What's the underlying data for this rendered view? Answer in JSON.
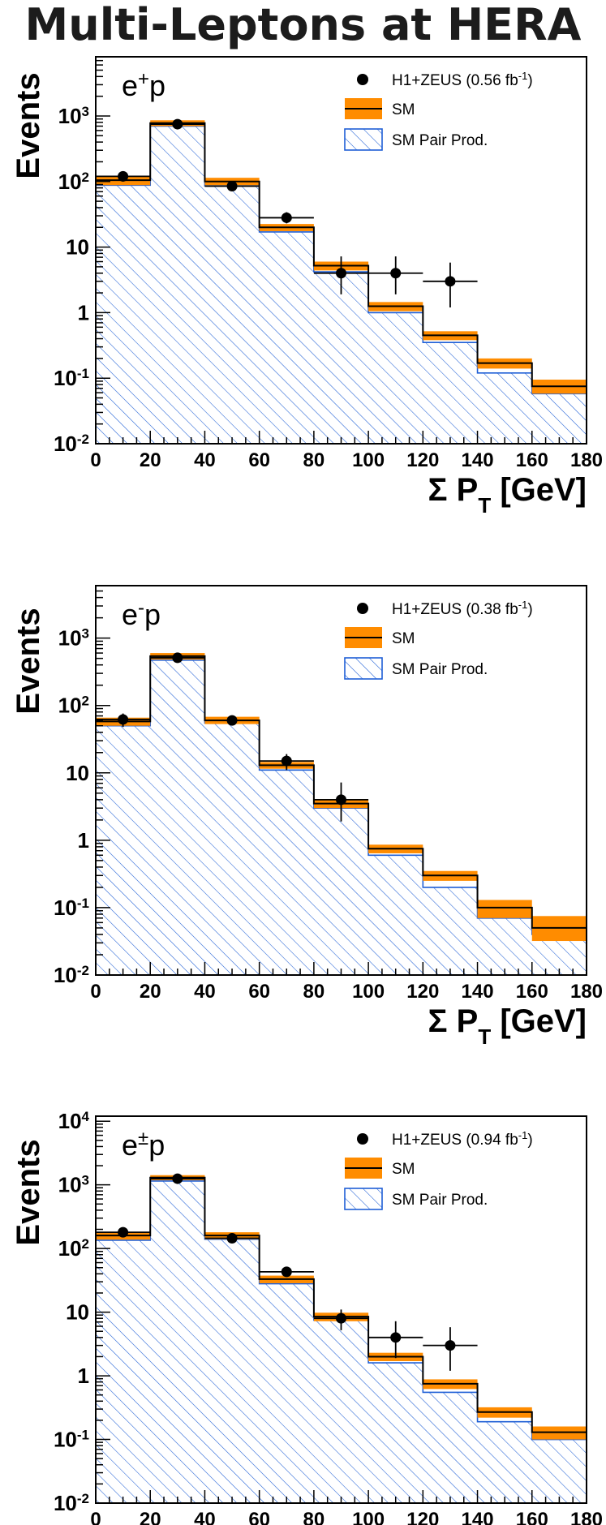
{
  "title": "Multi-Leptons at HERA",
  "colors": {
    "sm_band": "#ff8c00",
    "sm_line": "#000000",
    "pair_hatch": "#1f5fd6",
    "data": "#000000"
  },
  "legend_labels": {
    "sm": "SM",
    "pair": "SM Pair Prod."
  },
  "chart_data": [
    {
      "type": "bar",
      "panel_label": "e+p",
      "data_label": "H1+ZEUS (0.56 fb-1)",
      "xlabel": "Σ PT [GeV]",
      "ylabel": "Events",
      "xlim": [
        0,
        180
      ],
      "ylim": [
        0.01,
        8000
      ],
      "log_y": true,
      "x_ticks": [
        0,
        20,
        40,
        60,
        80,
        100,
        120,
        140,
        160,
        180
      ],
      "y_ticks": [
        "10-2",
        "10-1",
        "1",
        "10",
        "102",
        "103"
      ],
      "bin_edges": [
        0,
        20,
        40,
        60,
        80,
        100,
        120,
        140,
        160,
        180
      ],
      "sm": [
        105,
        780,
        100,
        20,
        5.2,
        1.25,
        0.45,
        0.17,
        0.075
      ],
      "sm_err_low": [
        88,
        700,
        88,
        17.5,
        4.4,
        1.05,
        0.38,
        0.14,
        0.058
      ],
      "sm_err_high": [
        122,
        860,
        114,
        22.5,
        6.0,
        1.45,
        0.52,
        0.2,
        0.095
      ],
      "pair": [
        88,
        700,
        86,
        17,
        4.2,
        1.0,
        0.35,
        0.12,
        0.058
      ],
      "data": [
        {
          "x": 10,
          "y": 120,
          "ylo": 100,
          "yhi": 142
        },
        {
          "x": 30,
          "y": 750,
          "ylo": 700,
          "yhi": 800
        },
        {
          "x": 50,
          "y": 85,
          "ylo": 76,
          "yhi": 95
        },
        {
          "x": 70,
          "y": 28,
          "ylo": 23,
          "yhi": 34
        },
        {
          "x": 90,
          "y": 4,
          "ylo": 1.9,
          "yhi": 7.2
        },
        {
          "x": 110,
          "y": 4,
          "ylo": 1.9,
          "yhi": 7.2
        },
        {
          "x": 130,
          "y": 3,
          "ylo": 1.2,
          "yhi": 5.8
        }
      ],
      "legend_entries": [
        "H1+ZEUS (0.56 fb-1)",
        "SM",
        "SM Pair Prod."
      ]
    },
    {
      "type": "bar",
      "panel_label": "e-p",
      "data_label": "H1+ZEUS (0.38 fb-1)",
      "xlabel": "Σ PT [GeV]",
      "ylabel": "Events",
      "xlim": [
        0,
        180
      ],
      "ylim": [
        0.01,
        6000
      ],
      "log_y": true,
      "x_ticks": [
        0,
        20,
        40,
        60,
        80,
        100,
        120,
        140,
        160,
        180
      ],
      "y_ticks": [
        "10-2",
        "10-1",
        "1",
        "10",
        "102",
        "103"
      ],
      "bin_edges": [
        0,
        20,
        40,
        60,
        80,
        100,
        120,
        140,
        160,
        180
      ],
      "sm": [
        58,
        540,
        60,
        13,
        3.5,
        0.75,
        0.3,
        0.1,
        0.05
      ],
      "sm_err_low": [
        50,
        480,
        53,
        11.5,
        3.0,
        0.64,
        0.25,
        0.07,
        0.032
      ],
      "sm_err_high": [
        66,
        600,
        68,
        14.5,
        4.0,
        0.86,
        0.35,
        0.13,
        0.075
      ],
      "pair": [
        50,
        470,
        55,
        11,
        3.0,
        0.6,
        0.2,
        0.07,
        0.04
      ],
      "data": [
        {
          "x": 10,
          "y": 62,
          "ylo": 48,
          "yhi": 76
        },
        {
          "x": 30,
          "y": 510,
          "ylo": 470,
          "yhi": 550
        },
        {
          "x": 50,
          "y": 60,
          "ylo": 52,
          "yhi": 68
        },
        {
          "x": 70,
          "y": 15,
          "ylo": 11,
          "yhi": 19
        },
        {
          "x": 90,
          "y": 4,
          "ylo": 1.9,
          "yhi": 7.2
        }
      ],
      "legend_entries": [
        "H1+ZEUS (0.38 fb-1)",
        "SM",
        "SM Pair Prod."
      ]
    },
    {
      "type": "bar",
      "panel_label": "e±p",
      "data_label": "H1+ZEUS (0.94 fb-1)",
      "xlabel": "Σ PT [GeV]",
      "ylabel": "Events",
      "xlim": [
        0,
        180
      ],
      "ylim": [
        0.01,
        12000
      ],
      "log_y": true,
      "x_ticks": [
        0,
        20,
        40,
        60,
        80,
        100,
        120,
        140,
        160,
        180
      ],
      "y_ticks": [
        "10-2",
        "10-1",
        "1",
        "10",
        "102",
        "103",
        "104"
      ],
      "bin_edges": [
        0,
        20,
        40,
        60,
        80,
        100,
        120,
        140,
        160,
        180
      ],
      "sm": [
        160,
        1300,
        160,
        33,
        8.5,
        2.0,
        0.75,
        0.27,
        0.13
      ],
      "sm_err_low": [
        138,
        1180,
        140,
        28.5,
        7.2,
        1.7,
        0.62,
        0.22,
        0.1
      ],
      "sm_err_high": [
        182,
        1420,
        180,
        37.5,
        9.8,
        2.3,
        0.88,
        0.32,
        0.16
      ],
      "pair": [
        135,
        1150,
        140,
        28,
        7.5,
        1.6,
        0.55,
        0.19,
        0.1
      ],
      "data": [
        {
          "x": 10,
          "y": 180,
          "ylo": 155,
          "yhi": 205
        },
        {
          "x": 30,
          "y": 1250,
          "ylo": 1180,
          "yhi": 1320
        },
        {
          "x": 50,
          "y": 145,
          "ylo": 132,
          "yhi": 158
        },
        {
          "x": 70,
          "y": 43,
          "ylo": 37,
          "yhi": 50
        },
        {
          "x": 90,
          "y": 8,
          "ylo": 5.2,
          "yhi": 11
        },
        {
          "x": 110,
          "y": 4,
          "ylo": 1.9,
          "yhi": 7.2
        },
        {
          "x": 130,
          "y": 3,
          "ylo": 1.2,
          "yhi": 5.8
        }
      ],
      "legend_entries": [
        "H1+ZEUS (0.94 fb-1)",
        "SM",
        "SM Pair Prod."
      ]
    }
  ]
}
